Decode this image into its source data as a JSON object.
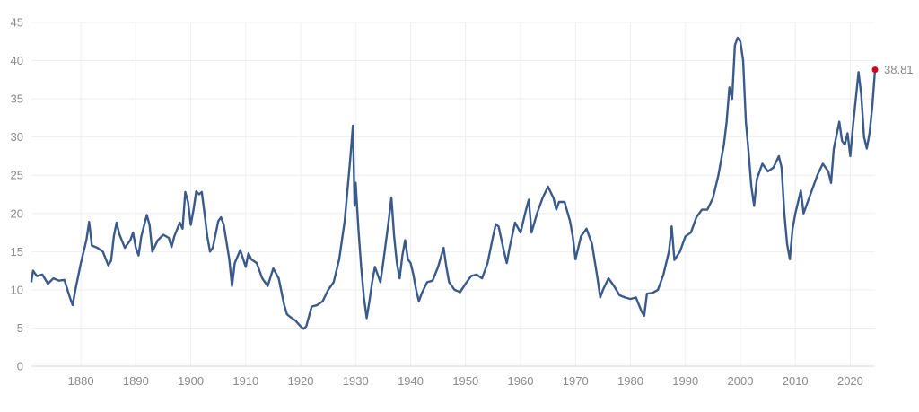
{
  "chart_data": {
    "type": "line",
    "title": "",
    "xlabel": "",
    "ylabel": "",
    "xlim": [
      1871,
      2024.5
    ],
    "ylim": [
      0,
      45
    ],
    "x_ticks": [
      1880,
      1890,
      1900,
      1910,
      1920,
      1930,
      1940,
      1950,
      1960,
      1970,
      1980,
      1990,
      2000,
      2010,
      2020
    ],
    "y_ticks": [
      0,
      5,
      10,
      15,
      20,
      25,
      30,
      35,
      40,
      45
    ],
    "grid": true,
    "legend": "none",
    "line_color": "#3a5a8c",
    "marker_color": "#d0021b",
    "last_value_label": "38.81",
    "series": [
      {
        "values": [
          [
            1871,
            11.1
          ],
          [
            1871.3,
            12.5
          ],
          [
            1872,
            11.8
          ],
          [
            1873,
            12.0
          ],
          [
            1874,
            10.8
          ],
          [
            1875,
            11.5
          ],
          [
            1876,
            11.2
          ],
          [
            1877,
            11.3
          ],
          [
            1878,
            9.0
          ],
          [
            1878.5,
            8.0
          ],
          [
            1879,
            10.0
          ],
          [
            1880,
            13.5
          ],
          [
            1880.5,
            15.0
          ],
          [
            1881,
            16.5
          ],
          [
            1881.5,
            18.9
          ],
          [
            1882,
            15.8
          ],
          [
            1883,
            15.5
          ],
          [
            1884,
            15.0
          ],
          [
            1885,
            13.2
          ],
          [
            1885.5,
            13.8
          ],
          [
            1886,
            17.0
          ],
          [
            1886.5,
            18.8
          ],
          [
            1887,
            17.3
          ],
          [
            1888,
            15.5
          ],
          [
            1889,
            16.5
          ],
          [
            1889.5,
            17.5
          ],
          [
            1890,
            15.5
          ],
          [
            1890.5,
            14.5
          ],
          [
            1891,
            17.0
          ],
          [
            1892,
            19.8
          ],
          [
            1892.5,
            18.5
          ],
          [
            1893,
            15.0
          ],
          [
            1894,
            16.5
          ],
          [
            1895,
            17.2
          ],
          [
            1896,
            16.8
          ],
          [
            1896.5,
            15.6
          ],
          [
            1897,
            17.0
          ],
          [
            1898,
            18.8
          ],
          [
            1898.5,
            18.0
          ],
          [
            1899,
            22.8
          ],
          [
            1899.5,
            21.5
          ],
          [
            1900,
            18.5
          ],
          [
            1900.5,
            20.5
          ],
          [
            1901,
            22.9
          ],
          [
            1901.5,
            22.5
          ],
          [
            1902,
            22.8
          ],
          [
            1902.5,
            20.0
          ],
          [
            1903,
            17.0
          ],
          [
            1903.5,
            15.0
          ],
          [
            1904,
            15.5
          ],
          [
            1905,
            19.0
          ],
          [
            1905.5,
            19.5
          ],
          [
            1906,
            18.5
          ],
          [
            1907,
            14.0
          ],
          [
            1907.5,
            10.5
          ],
          [
            1908,
            13.5
          ],
          [
            1909,
            15.2
          ],
          [
            1910,
            13.0
          ],
          [
            1910.5,
            14.8
          ],
          [
            1911,
            14.0
          ],
          [
            1912,
            13.5
          ],
          [
            1913,
            11.5
          ],
          [
            1914,
            10.5
          ],
          [
            1915,
            12.8
          ],
          [
            1916,
            11.5
          ],
          [
            1917,
            8.0
          ],
          [
            1917.5,
            6.8
          ],
          [
            1918,
            6.5
          ],
          [
            1919,
            6.0
          ],
          [
            1920,
            5.2
          ],
          [
            1920.5,
            4.9
          ],
          [
            1921,
            5.2
          ],
          [
            1922,
            7.8
          ],
          [
            1923,
            8.0
          ],
          [
            1924,
            8.5
          ],
          [
            1925,
            10.0
          ],
          [
            1926,
            11.0
          ],
          [
            1927,
            14.0
          ],
          [
            1928,
            19.0
          ],
          [
            1928.5,
            23.0
          ],
          [
            1929,
            27.0
          ],
          [
            1929.5,
            31.5
          ],
          [
            1929.8,
            21.0
          ],
          [
            1930,
            24.0
          ],
          [
            1930.5,
            18.0
          ],
          [
            1931,
            13.0
          ],
          [
            1931.5,
            9.0
          ],
          [
            1932,
            6.3
          ],
          [
            1932.5,
            8.5
          ],
          [
            1933,
            11.0
          ],
          [
            1933.5,
            13.0
          ],
          [
            1934,
            12.0
          ],
          [
            1934.5,
            11.0
          ],
          [
            1935,
            13.5
          ],
          [
            1936,
            19.0
          ],
          [
            1936.5,
            22.1
          ],
          [
            1937,
            17.0
          ],
          [
            1937.5,
            13.5
          ],
          [
            1938,
            11.5
          ],
          [
            1938.5,
            14.5
          ],
          [
            1939,
            16.5
          ],
          [
            1939.5,
            14.0
          ],
          [
            1940,
            13.5
          ],
          [
            1940.5,
            12.0
          ],
          [
            1941,
            10.0
          ],
          [
            1941.5,
            8.5
          ],
          [
            1942,
            9.5
          ],
          [
            1943,
            11.0
          ],
          [
            1944,
            11.2
          ],
          [
            1945,
            13.0
          ],
          [
            1946,
            15.5
          ],
          [
            1946.5,
            13.0
          ],
          [
            1947,
            11.0
          ],
          [
            1948,
            10.0
          ],
          [
            1949,
            9.7
          ],
          [
            1950,
            10.8
          ],
          [
            1951,
            11.8
          ],
          [
            1952,
            12.0
          ],
          [
            1953,
            11.5
          ],
          [
            1954,
            13.5
          ],
          [
            1955,
            17.0
          ],
          [
            1955.5,
            18.6
          ],
          [
            1956,
            18.3
          ],
          [
            1957,
            15.0
          ],
          [
            1957.5,
            13.5
          ],
          [
            1958,
            15.5
          ],
          [
            1959,
            18.8
          ],
          [
            1960,
            17.5
          ],
          [
            1961,
            20.5
          ],
          [
            1961.5,
            21.8
          ],
          [
            1962,
            17.5
          ],
          [
            1963,
            20.0
          ],
          [
            1964,
            22.0
          ],
          [
            1965,
            23.5
          ],
          [
            1966,
            22.0
          ],
          [
            1966.5,
            20.5
          ],
          [
            1967,
            21.5
          ],
          [
            1968,
            21.5
          ],
          [
            1969,
            19.0
          ],
          [
            1969.5,
            17.0
          ],
          [
            1970,
            14.0
          ],
          [
            1971,
            17.0
          ],
          [
            1972,
            18.0
          ],
          [
            1973,
            16.0
          ],
          [
            1974,
            11.5
          ],
          [
            1974.5,
            9.0
          ],
          [
            1975,
            10.0
          ],
          [
            1976,
            11.5
          ],
          [
            1977,
            10.5
          ],
          [
            1978,
            9.3
          ],
          [
            1979,
            9.0
          ],
          [
            1980,
            8.8
          ],
          [
            1981,
            9.0
          ],
          [
            1982,
            7.2
          ],
          [
            1982.5,
            6.6
          ],
          [
            1983,
            9.5
          ],
          [
            1984,
            9.6
          ],
          [
            1985,
            10.0
          ],
          [
            1986,
            12.0
          ],
          [
            1987,
            15.0
          ],
          [
            1987.5,
            18.3
          ],
          [
            1988,
            13.9
          ],
          [
            1989,
            15.0
          ],
          [
            1990,
            17.0
          ],
          [
            1991,
            17.5
          ],
          [
            1992,
            19.5
          ],
          [
            1993,
            20.5
          ],
          [
            1994,
            20.5
          ],
          [
            1995,
            22.0
          ],
          [
            1996,
            25.0
          ],
          [
            1997,
            29.0
          ],
          [
            1997.5,
            32.0
          ],
          [
            1998,
            36.5
          ],
          [
            1998.5,
            35.0
          ],
          [
            1999,
            42.0
          ],
          [
            1999.5,
            43.0
          ],
          [
            2000,
            42.5
          ],
          [
            2000.5,
            40.0
          ],
          [
            2001,
            32.0
          ],
          [
            2001.5,
            28.0
          ],
          [
            2002,
            23.5
          ],
          [
            2002.5,
            21.0
          ],
          [
            2003,
            24.5
          ],
          [
            2004,
            26.5
          ],
          [
            2005,
            25.5
          ],
          [
            2006,
            26.0
          ],
          [
            2007,
            27.5
          ],
          [
            2007.5,
            26.0
          ],
          [
            2008,
            20.0
          ],
          [
            2008.5,
            16.0
          ],
          [
            2009,
            14.0
          ],
          [
            2009.5,
            18.0
          ],
          [
            2010,
            20.0
          ],
          [
            2011,
            23.0
          ],
          [
            2011.5,
            20.0
          ],
          [
            2012,
            21.0
          ],
          [
            2013,
            23.0
          ],
          [
            2014,
            25.0
          ],
          [
            2015,
            26.5
          ],
          [
            2016,
            25.5
          ],
          [
            2016.5,
            24.0
          ],
          [
            2017,
            28.5
          ],
          [
            2018,
            32.0
          ],
          [
            2018.5,
            29.5
          ],
          [
            2019,
            29.0
          ],
          [
            2019.5,
            30.5
          ],
          [
            2020,
            27.5
          ],
          [
            2020.5,
            31.5
          ],
          [
            2021,
            35.0
          ],
          [
            2021.5,
            38.5
          ],
          [
            2022,
            35.5
          ],
          [
            2022.5,
            30.0
          ],
          [
            2023,
            28.5
          ],
          [
            2023.5,
            30.5
          ],
          [
            2024,
            34.0
          ],
          [
            2024.5,
            38.81
          ]
        ]
      }
    ]
  }
}
